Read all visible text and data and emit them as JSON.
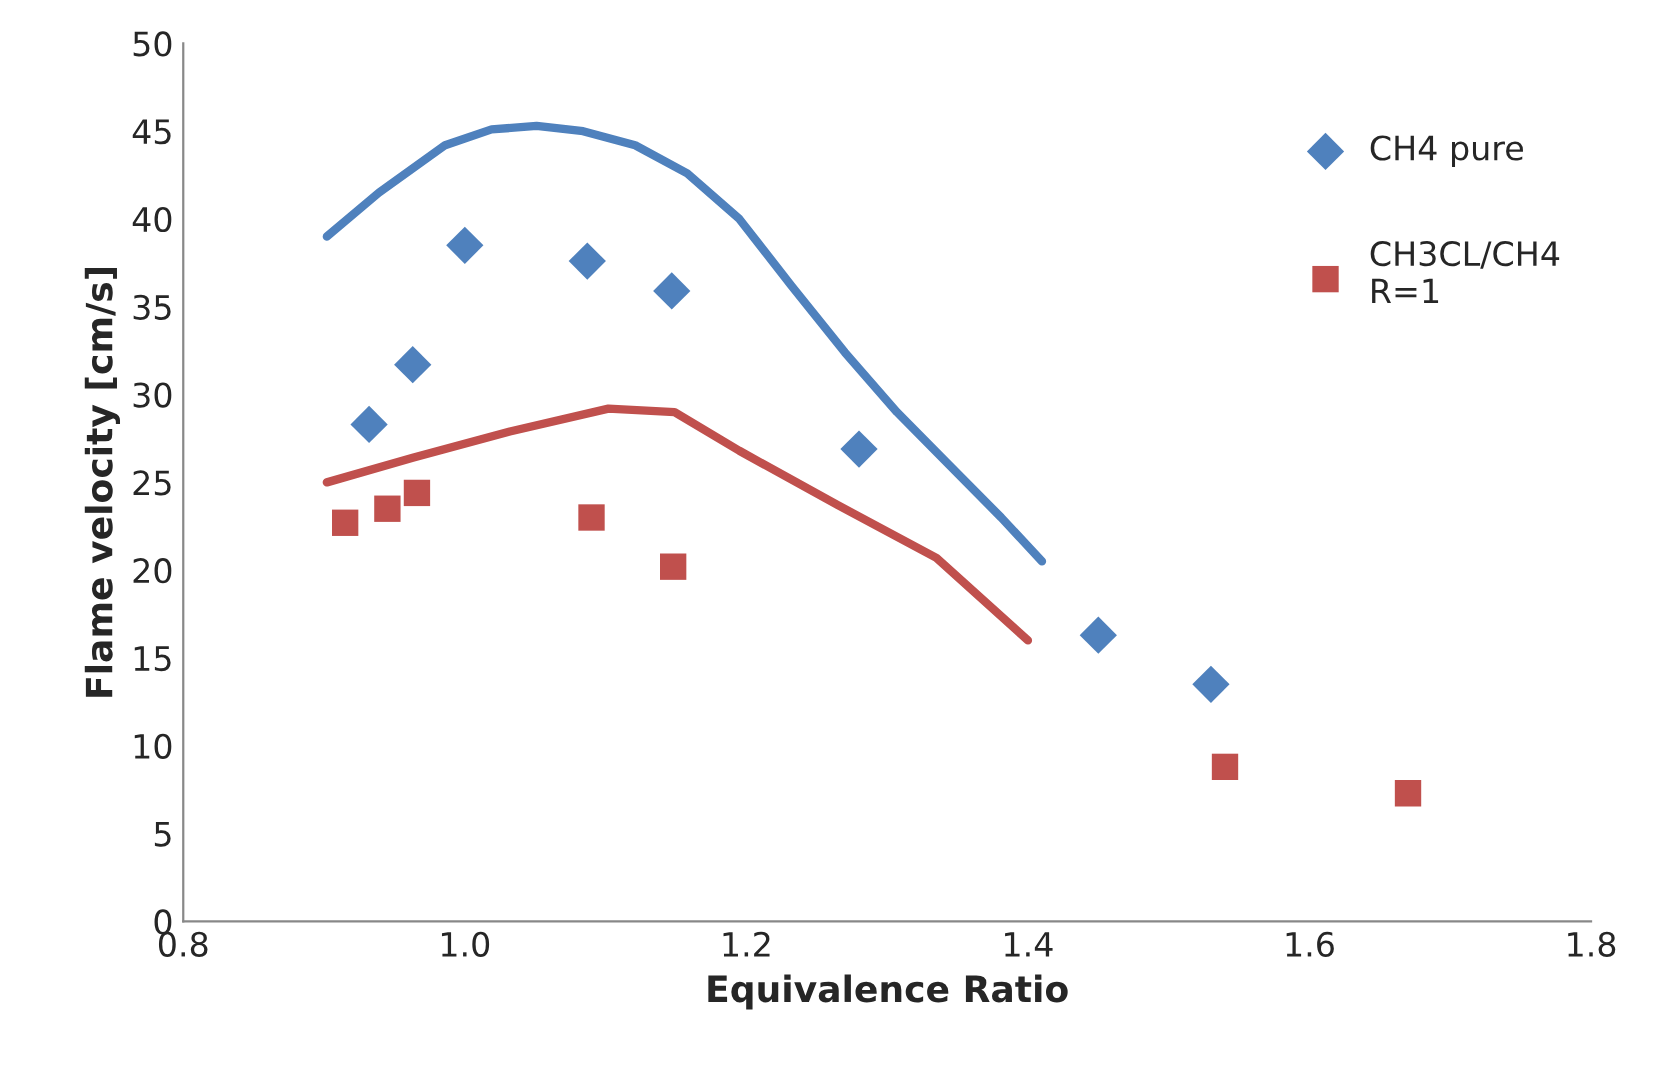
{
  "chart_data": {
    "type": "scatter",
    "xlabel": "Equivalence Ratio",
    "ylabel": "Flame velocity [cm/s]",
    "xlim": [
      0.8,
      1.8
    ],
    "xticks": [
      {
        "value": 0.8,
        "label": "0.8"
      },
      {
        "value": 1.0,
        "label": "1.0"
      },
      {
        "value": 1.2,
        "label": "1.2"
      },
      {
        "value": 1.4,
        "label": "1.4"
      },
      {
        "value": 1.6,
        "label": "1.6"
      },
      {
        "value": 1.8,
        "label": "1.8"
      }
    ],
    "ylim": [
      0,
      50
    ],
    "yticks": [
      0,
      5,
      10,
      15,
      20,
      25,
      30,
      35,
      40,
      45,
      50
    ],
    "grid": false,
    "legend": "top right",
    "series": [
      {
        "type": "line",
        "color": "#4f81bd",
        "marker": "none",
        "x": [
          0.902,
          0.939,
          0.986,
          1.019,
          1.051,
          1.084,
          1.121,
          1.158,
          1.195,
          1.232,
          1.27,
          1.307,
          1.344,
          1.381,
          1.41
        ],
        "values": [
          39.0,
          41.5,
          44.2,
          45.1,
          45.3,
          45.0,
          44.2,
          42.6,
          40.0,
          36.2,
          32.4,
          29.0,
          26.0,
          23.0,
          20.5
        ]
      },
      {
        "type": "line",
        "color": "#c0504d",
        "marker": "none",
        "x": [
          0.902,
          0.963,
          1.032,
          1.102,
          1.149,
          1.195,
          1.265,
          1.335,
          1.4
        ],
        "values": [
          25.0,
          26.4,
          27.9,
          29.2,
          29.0,
          26.8,
          23.7,
          20.7,
          16.0
        ]
      },
      {
        "name": "CH4 pure",
        "color": "#4f81bd",
        "marker": "diamond",
        "x": [
          0.932,
          0.963,
          1.0,
          1.087,
          1.147,
          1.28,
          1.45,
          1.53
        ],
        "values": [
          28.3,
          31.7,
          38.5,
          37.6,
          35.9,
          26.9,
          16.3,
          13.5
        ]
      },
      {
        "name": "CH3CL/CH4\nR=1",
        "color": "#c0504d",
        "marker": "square",
        "x": [
          0.915,
          0.945,
          0.966,
          1.09,
          1.148,
          1.54,
          1.67
        ],
        "values": [
          22.7,
          23.5,
          24.4,
          23.0,
          20.2,
          8.8,
          7.3
        ]
      }
    ]
  }
}
